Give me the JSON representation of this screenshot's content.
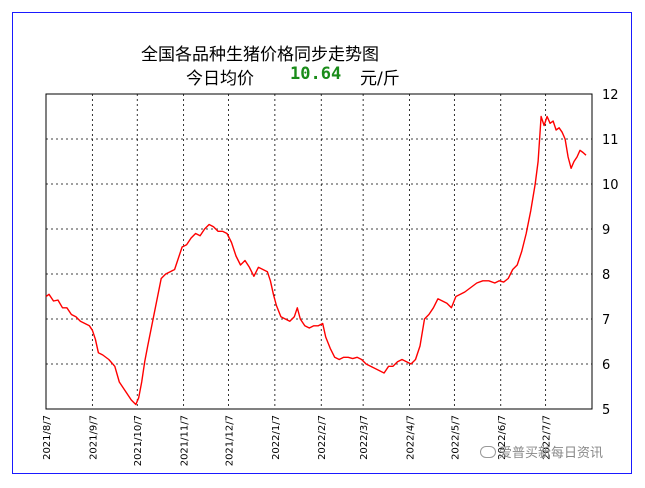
{
  "chart_data": {
    "type": "line",
    "title": "全国各品种生猪价格同步走势图",
    "subtitle_label": "今日均价",
    "subtitle_value": "10.64",
    "subtitle_unit": "元/斤",
    "ylim": [
      5,
      12
    ],
    "y_ticks": [
      "5",
      "6",
      "7",
      "8",
      "9",
      "10",
      "11",
      "12"
    ],
    "x_ticks": [
      "2021/8/7",
      "2021/9/7",
      "2021/10/7",
      "2021/11/7",
      "2021/12/7",
      "2022/1/7",
      "2022/2/7",
      "2022/3/7",
      "2022/4/7",
      "2022/5/7",
      "2022/6/7",
      "2022/7/7"
    ],
    "grid": true,
    "series_color": "#ff0000",
    "series": [
      {
        "values": [
          [
            "2021-08-07",
            7.5
          ],
          [
            "2021-08-09",
            7.55
          ],
          [
            "2021-08-12",
            7.4
          ],
          [
            "2021-08-15",
            7.42
          ],
          [
            "2021-08-18",
            7.25
          ],
          [
            "2021-08-21",
            7.25
          ],
          [
            "2021-08-24",
            7.1
          ],
          [
            "2021-08-27",
            7.05
          ],
          [
            "2021-08-30",
            6.95
          ],
          [
            "2021-09-02",
            6.9
          ],
          [
            "2021-09-05",
            6.85
          ],
          [
            "2021-09-07",
            6.75
          ],
          [
            "2021-09-09",
            6.55
          ],
          [
            "2021-09-11",
            6.25
          ],
          [
            "2021-09-14",
            6.2
          ],
          [
            "2021-09-18",
            6.1
          ],
          [
            "2021-09-22",
            5.95
          ],
          [
            "2021-09-25",
            5.6
          ],
          [
            "2021-09-28",
            5.45
          ],
          [
            "2021-10-01",
            5.3
          ],
          [
            "2021-10-03",
            5.2
          ],
          [
            "2021-10-06",
            5.1
          ],
          [
            "2021-10-08",
            5.25
          ],
          [
            "2021-10-10",
            5.6
          ],
          [
            "2021-10-12",
            6.05
          ],
          [
            "2021-10-14",
            6.4
          ],
          [
            "2021-10-17",
            6.9
          ],
          [
            "2021-10-20",
            7.4
          ],
          [
            "2021-10-23",
            7.9
          ],
          [
            "2021-10-26",
            8.0
          ],
          [
            "2021-10-29",
            8.05
          ],
          [
            "2021-11-01",
            8.1
          ],
          [
            "2021-11-03",
            8.3
          ],
          [
            "2021-11-06",
            8.6
          ],
          [
            "2021-11-09",
            8.65
          ],
          [
            "2021-11-12",
            8.8
          ],
          [
            "2021-11-15",
            8.9
          ],
          [
            "2021-11-18",
            8.85
          ],
          [
            "2021-11-21",
            9.0
          ],
          [
            "2021-11-24",
            9.1
          ],
          [
            "2021-11-27",
            9.05
          ],
          [
            "2021-11-30",
            8.95
          ],
          [
            "2021-12-03",
            8.95
          ],
          [
            "2021-12-06",
            8.9
          ],
          [
            "2021-12-09",
            8.7
          ],
          [
            "2021-12-12",
            8.4
          ],
          [
            "2021-12-15",
            8.2
          ],
          [
            "2021-12-18",
            8.3
          ],
          [
            "2021-12-21",
            8.15
          ],
          [
            "2021-12-24",
            7.95
          ],
          [
            "2021-12-27",
            8.15
          ],
          [
            "2021-12-30",
            8.1
          ],
          [
            "2022-01-02",
            8.05
          ],
          [
            "2022-01-04",
            7.85
          ],
          [
            "2022-01-06",
            7.55
          ],
          [
            "2022-01-08",
            7.3
          ],
          [
            "2022-01-11",
            7.05
          ],
          [
            "2022-01-14",
            7.0
          ],
          [
            "2022-01-17",
            6.95
          ],
          [
            "2022-01-20",
            7.05
          ],
          [
            "2022-01-22",
            7.25
          ],
          [
            "2022-01-24",
            7.0
          ],
          [
            "2022-01-27",
            6.85
          ],
          [
            "2022-01-30",
            6.8
          ],
          [
            "2022-02-02",
            6.85
          ],
          [
            "2022-02-05",
            6.85
          ],
          [
            "2022-02-08",
            6.9
          ],
          [
            "2022-02-10",
            6.6
          ],
          [
            "2022-02-13",
            6.35
          ],
          [
            "2022-02-16",
            6.15
          ],
          [
            "2022-02-19",
            6.1
          ],
          [
            "2022-02-22",
            6.15
          ],
          [
            "2022-02-25",
            6.15
          ],
          [
            "2022-02-28",
            6.12
          ],
          [
            "2022-03-03",
            6.15
          ],
          [
            "2022-03-06",
            6.1
          ],
          [
            "2022-03-09",
            6.0
          ],
          [
            "2022-03-12",
            5.95
          ],
          [
            "2022-03-15",
            5.9
          ],
          [
            "2022-03-18",
            5.85
          ],
          [
            "2022-03-21",
            5.8
          ],
          [
            "2022-03-24",
            5.95
          ],
          [
            "2022-03-27",
            5.95
          ],
          [
            "2022-03-30",
            6.05
          ],
          [
            "2022-04-02",
            6.1
          ],
          [
            "2022-04-05",
            6.05
          ],
          [
            "2022-04-08",
            6.0
          ],
          [
            "2022-04-11",
            6.1
          ],
          [
            "2022-04-14",
            6.4
          ],
          [
            "2022-04-17",
            7.0
          ],
          [
            "2022-04-20",
            7.1
          ],
          [
            "2022-04-23",
            7.25
          ],
          [
            "2022-04-26",
            7.45
          ],
          [
            "2022-04-29",
            7.4
          ],
          [
            "2022-05-02",
            7.35
          ],
          [
            "2022-05-05",
            7.25
          ],
          [
            "2022-05-08",
            7.5
          ],
          [
            "2022-05-11",
            7.55
          ],
          [
            "2022-05-14",
            7.6
          ],
          [
            "2022-05-18",
            7.7
          ],
          [
            "2022-05-22",
            7.8
          ],
          [
            "2022-05-26",
            7.85
          ],
          [
            "2022-05-30",
            7.85
          ],
          [
            "2022-06-03",
            7.8
          ],
          [
            "2022-06-06",
            7.85
          ],
          [
            "2022-06-09",
            7.82
          ],
          [
            "2022-06-12",
            7.9
          ],
          [
            "2022-06-15",
            8.1
          ],
          [
            "2022-06-18",
            8.2
          ],
          [
            "2022-06-21",
            8.5
          ],
          [
            "2022-06-24",
            8.9
          ],
          [
            "2022-06-27",
            9.4
          ],
          [
            "2022-06-30",
            10.0
          ],
          [
            "2022-07-02",
            10.5
          ],
          [
            "2022-07-04",
            11.5
          ],
          [
            "2022-07-06",
            11.3
          ],
          [
            "2022-07-08",
            11.5
          ],
          [
            "2022-07-10",
            11.35
          ],
          [
            "2022-07-12",
            11.4
          ],
          [
            "2022-07-14",
            11.2
          ],
          [
            "2022-07-16",
            11.25
          ],
          [
            "2022-07-18",
            11.15
          ],
          [
            "2022-07-20",
            11.0
          ],
          [
            "2022-07-22",
            10.6
          ],
          [
            "2022-07-24",
            10.35
          ],
          [
            "2022-07-26",
            10.5
          ],
          [
            "2022-07-28",
            10.6
          ],
          [
            "2022-07-30",
            10.75
          ],
          [
            "2022-08-01",
            10.7
          ],
          [
            "2022-08-03",
            10.64
          ]
        ]
      }
    ]
  },
  "watermark": "爱普买新每日资讯"
}
